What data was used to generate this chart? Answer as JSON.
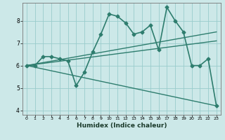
{
  "xlabel": "Humidex (Indice chaleur)",
  "ylabel": "",
  "bg_color": "#cce8e8",
  "grid_color": "#99cccc",
  "line_color": "#2e7d6e",
  "xlim": [
    -0.5,
    23.5
  ],
  "ylim": [
    3.8,
    8.8
  ],
  "yticks": [
    4,
    5,
    6,
    7,
    8
  ],
  "xticks": [
    0,
    1,
    2,
    3,
    4,
    5,
    6,
    7,
    8,
    9,
    10,
    11,
    12,
    13,
    14,
    15,
    16,
    17,
    18,
    19,
    20,
    21,
    22,
    23
  ],
  "series": [
    {
      "x": [
        0,
        1,
        2,
        3,
        4,
        5,
        6,
        7,
        8,
        9,
        10,
        11,
        12,
        13,
        14,
        15,
        16,
        17,
        18,
        19,
        20,
        21,
        22,
        23
      ],
      "y": [
        6.0,
        6.0,
        6.4,
        6.4,
        6.3,
        6.2,
        5.1,
        5.7,
        6.6,
        7.4,
        8.3,
        8.2,
        7.9,
        7.4,
        7.5,
        7.8,
        6.7,
        8.6,
        8.0,
        7.5,
        6.0,
        6.0,
        6.3,
        4.2
      ],
      "marker": "D",
      "markersize": 2.5,
      "linewidth": 1.2
    },
    {
      "x": [
        0,
        23
      ],
      "y": [
        6.0,
        7.5
      ],
      "marker": null,
      "linewidth": 1.0
    },
    {
      "x": [
        0,
        23
      ],
      "y": [
        6.0,
        7.1
      ],
      "marker": null,
      "linewidth": 1.0
    },
    {
      "x": [
        0,
        23
      ],
      "y": [
        6.0,
        4.2
      ],
      "marker": null,
      "linewidth": 1.0
    }
  ]
}
